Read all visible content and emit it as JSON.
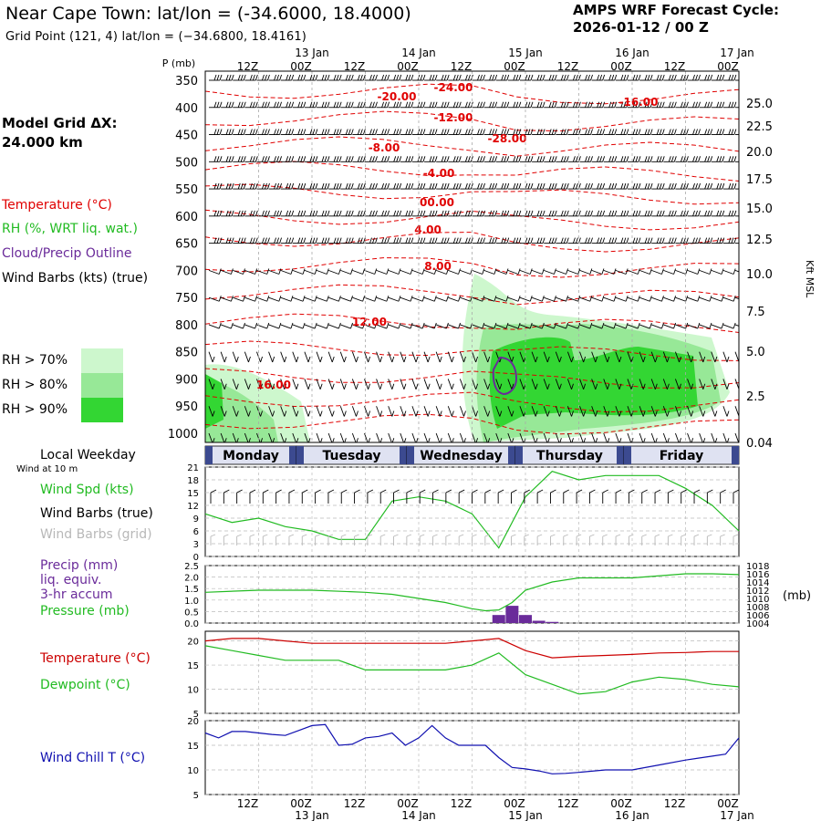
{
  "header": {
    "title": "Near Cape Town:  lat/lon = (-34.6000, 18.4000)",
    "subtitle": "Grid Point (121, 4) lat/lon = (−34.6800, 18.4161)",
    "forecast_line1": "AMPS WRF Forecast Cycle:",
    "forecast_line2": "2026-01-12 / 00  Z"
  },
  "left_panel": {
    "model_grid_label": "Model Grid ΔX:",
    "model_grid_value": " 24.000 km",
    "legend_temperature": "Temperature (°C)",
    "legend_rh": "RH (%, WRT liq. wat.)",
    "legend_cloud": "Cloud/Precip Outline",
    "legend_wind": "Wind Barbs (kts) (true)",
    "rh70": "RH > 70%",
    "rh80": "RH > 80%",
    "rh90": "RH > 90%",
    "local_weekday": "Local Weekday",
    "wind_at": "Wind at 10 m",
    "wind_spd": "Wind Spd (kts)",
    "wind_barbs_true": "Wind Barbs (true)",
    "wind_barbs_grid": "Wind Barbs (grid)",
    "precip1": "Precip (mm)",
    "precip2": "liq. equiv.",
    "precip3": "3-hr accum",
    "pressure": "Pressure (mb)",
    "temp": "Temperature (°C)",
    "dewpoint": "Dewpoint (°C)",
    "windchill": "Wind Chill T (°C)"
  },
  "colors": {
    "temp": "#e00000",
    "rh70": "#cdf7cd",
    "rh80": "#97e897",
    "rh90": "#33d633",
    "green_line": "#22bb22",
    "purple": "#6a2b9a",
    "blue": "#1010b0",
    "daybar_dark": "#3c4a90",
    "daybar_light": "#dfe2f2"
  },
  "chart_data": [
    {
      "type": "heatmap",
      "title": "Time-height cross section",
      "ylabel": "P (mb)",
      "y2label": "Kft MSL",
      "pressure_levels": [
        350,
        400,
        450,
        500,
        550,
        600,
        650,
        700,
        750,
        800,
        850,
        900,
        950,
        1000
      ],
      "height_ticks_kft": [
        "25.0",
        "22.5",
        "20.0",
        "17.5",
        "15.0",
        "12.5",
        "10.0",
        "7.5",
        "5.0",
        "2.5",
        "0.04"
      ],
      "top_time_labels": [
        "12Z",
        "00Z",
        "12Z",
        "00Z",
        "12Z",
        "00Z",
        "12Z",
        "00Z",
        "12Z",
        "00Z"
      ],
      "top_date_labels": [
        "13 Jan",
        "14 Jan",
        "15 Jan",
        "16 Jan",
        "17 Jan"
      ],
      "temperature_contour_labels": [
        "-24.00",
        "-20.00",
        "-16.00",
        "-12.00",
        "-28.00",
        "-8.00",
        "-4.00",
        "00.00",
        "4.00",
        "8.00",
        "12.00",
        "16.00"
      ],
      "xrange_hours": [
        0,
        120
      ]
    },
    {
      "type": "table",
      "title": "Local Weekday",
      "days": [
        "Monday",
        "Tuesday",
        "Wednesday",
        "Thursday",
        "Friday"
      ]
    },
    {
      "type": "line",
      "title": "Wind Spd (kts)",
      "ylim": [
        0,
        21
      ],
      "yticks": [
        "0",
        "3",
        "6",
        "9",
        "12",
        "15",
        "18",
        "21"
      ],
      "x_hours": [
        0,
        6,
        12,
        18,
        24,
        30,
        36,
        42,
        48,
        54,
        60,
        66,
        72,
        78,
        84,
        90,
        96,
        102,
        108,
        114,
        120
      ],
      "values": [
        10,
        8,
        9,
        7,
        6,
        4,
        4,
        13,
        14,
        13,
        10,
        2,
        14,
        20,
        18,
        19,
        19,
        19,
        16,
        12,
        6
      ]
    },
    {
      "type": "bar",
      "title": "Precip (mm) liq. equiv. 3-hr accum / Pressure (mb)",
      "ylim": [
        0,
        2.5
      ],
      "yticks": [
        "0.0",
        "0.5",
        "1.0",
        "1.5",
        "2.0",
        "2.5"
      ],
      "y2ticks": [
        "1004",
        "1006",
        "1008",
        "1010",
        "1012",
        "1014",
        "1016",
        "1018"
      ],
      "precip_x_hours": [
        66,
        69,
        72,
        75,
        78
      ],
      "precip_values": [
        0.35,
        0.75,
        0.35,
        0.1,
        0.05
      ],
      "pressure_x_hours": [
        0,
        12,
        24,
        36,
        42,
        48,
        54,
        60,
        63,
        66,
        69,
        72,
        78,
        84,
        96,
        108,
        114,
        120
      ],
      "pressure_values": [
        1011.5,
        1012,
        1012,
        1011.5,
        1011,
        1010,
        1009,
        1007.5,
        1007,
        1007.2,
        1009,
        1012,
        1014,
        1015,
        1015,
        1016,
        1016,
        1015.8
      ]
    },
    {
      "type": "line",
      "title": "Temperature / Dewpoint (°C)",
      "ylim": [
        5,
        22
      ],
      "yticks": [
        "5",
        "10",
        "15",
        "20"
      ],
      "x_hours": [
        0,
        6,
        12,
        18,
        24,
        30,
        36,
        42,
        48,
        54,
        60,
        66,
        72,
        78,
        84,
        90,
        96,
        102,
        108,
        114,
        120
      ],
      "series": [
        {
          "name": "Temperature",
          "values": [
            20,
            20.5,
            20.5,
            20,
            19.5,
            19.5,
            19.5,
            19.5,
            19.5,
            19.5,
            20,
            20.5,
            18,
            16.5,
            16.8,
            17,
            17.2,
            17.5,
            17.6,
            17.8,
            17.8
          ]
        },
        {
          "name": "Dewpoint",
          "values": [
            19,
            18,
            17,
            16,
            16,
            16,
            14,
            14,
            14,
            14,
            15,
            17.5,
            13,
            11,
            9,
            9.5,
            11.5,
            12.5,
            12,
            11,
            10.5
          ]
        }
      ]
    },
    {
      "type": "line",
      "title": "Wind Chill T (°C)",
      "ylim": [
        5,
        20
      ],
      "yticks": [
        "5",
        "10",
        "15",
        "20"
      ],
      "x_hours": [
        0,
        3,
        6,
        9,
        12,
        15,
        18,
        21,
        24,
        27,
        30,
        33,
        36,
        39,
        42,
        45,
        48,
        51,
        54,
        57,
        60,
        63,
        66,
        69,
        72,
        75,
        78,
        81,
        84,
        90,
        96,
        102,
        108,
        114,
        117,
        120
      ],
      "values": [
        17.5,
        16.5,
        17.8,
        17.8,
        17.5,
        17.2,
        17,
        18,
        19,
        19.2,
        15,
        15.2,
        16.5,
        16.8,
        17.5,
        15,
        16.5,
        19,
        16.5,
        15,
        15,
        15,
        12.5,
        10.5,
        10.2,
        9.8,
        9.2,
        9.3,
        9.5,
        10,
        10,
        11,
        12,
        12.8,
        13.2,
        16.5
      ]
    }
  ]
}
